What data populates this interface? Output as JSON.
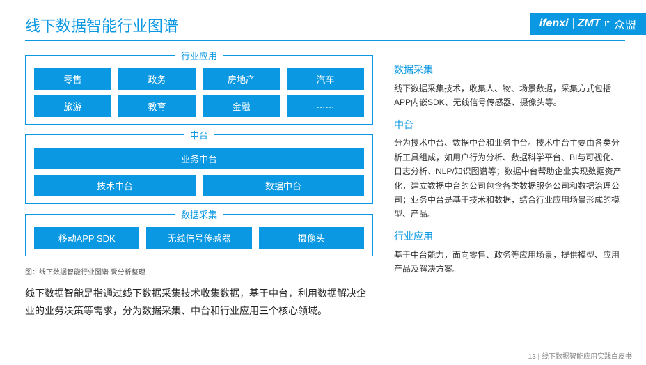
{
  "brand_color": "#0b98e2",
  "logos": {
    "a": "ifenxi",
    "b": "ZMT",
    "c": "众盟"
  },
  "title": "线下数据智能行业图谱",
  "diagram": {
    "groups": [
      {
        "label": "行业应用",
        "rows": [
          [
            "零售",
            "政务",
            "房地产",
            "汽车"
          ],
          [
            "旅游",
            "教育",
            "金融",
            "……"
          ]
        ]
      },
      {
        "label": "中台",
        "rows": [
          [
            "业务中台"
          ],
          [
            "技术中台",
            "数据中台"
          ]
        ]
      },
      {
        "label": "数据采集",
        "rows": [
          [
            "移动APP SDK",
            "无线信号传感器",
            "摄像头"
          ]
        ]
      }
    ],
    "caption": "图：线下数据智能行业图谱 爱分析整理"
  },
  "left_para": "线下数据智能是指通过线下数据采集技术收集数据，基于中台，利用数据解决企业的业务决策等需求，分为数据采集、中台和行业应用三个核心领域。",
  "sections": [
    {
      "title": "数据采集",
      "body": "线下数据采集技术，收集人、物、场景数据，采集方式包括APP内嵌SDK、无线信号传感器、摄像头等。"
    },
    {
      "title": "中台",
      "body": "分为技术中台、数据中台和业务中台。技术中台主要由各类分析工具组成，如用户行为分析、数据科学平台、BI与可视化、日志分析、NLP/知识图谱等；数据中台帮助企业实现数据资产化，建立数据中台的公司包含各类数据服务公司和数据治理公司；业务中台是基于技术和数据，结合行业应用场景形成的模型、产品。"
    },
    {
      "title": "行业应用",
      "body": "基于中台能力，面向零售、政务等应用场景，提供模型、应用产品及解决方案。"
    }
  ],
  "footer": {
    "page": "13",
    "sep": " | ",
    "name": "线下数据智能应用实践白皮书"
  }
}
